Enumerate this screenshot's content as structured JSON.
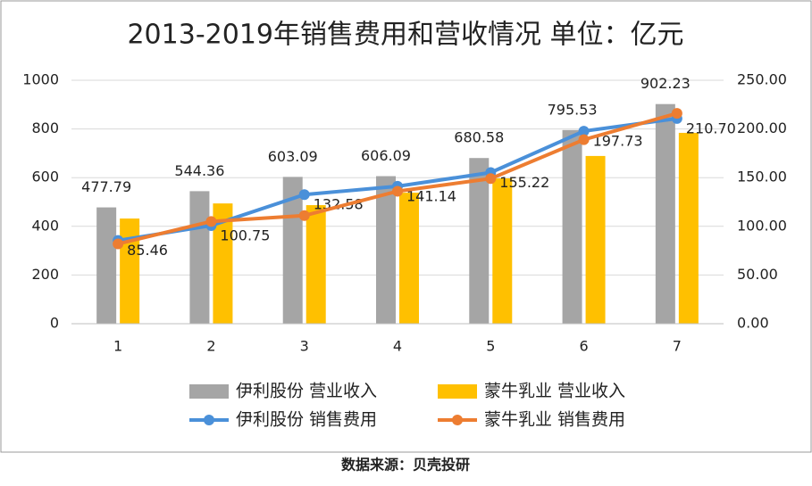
{
  "chart_data": {
    "type": "bar-line",
    "title": "2013-2019年销售费用和营收情况 单位：亿元",
    "source": "数据来源：贝壳投研",
    "categories": [
      "1",
      "2",
      "3",
      "4",
      "5",
      "6",
      "7"
    ],
    "series": [
      {
        "name": "伊利股份 营业收入",
        "kind": "bar",
        "color": "#a5a5a5",
        "values": [
          477.79,
          544.36,
          603.09,
          606.09,
          680.58,
          795.53,
          902.23
        ]
      },
      {
        "name": "蒙牛乳业 营业收入",
        "kind": "bar",
        "color": "#ffc000",
        "values": [
          432,
          494,
          487,
          538,
          597,
          689,
          784
        ]
      },
      {
        "name": "伊利股份 销售费用",
        "kind": "line",
        "axis": "y2",
        "color": "#4a90d9",
        "values": [
          85.46,
          100.75,
          132.58,
          141.14,
          155.22,
          197.73,
          210.7
        ],
        "value_labels": [
          "85.46",
          "100.75",
          "132.58",
          "141.14",
          "155.22",
          "197.73",
          "210.70"
        ]
      },
      {
        "name": "蒙牛乳业 销售费用",
        "kind": "line",
        "axis": "y2",
        "color": "#ed7d31",
        "values": [
          82,
          105,
          111,
          136,
          149,
          189,
          216
        ]
      }
    ],
    "ylim": [
      0,
      1000
    ],
    "yticks": [
      0,
      200,
      400,
      600,
      800,
      1000
    ],
    "y2lim": [
      0,
      250
    ],
    "y2ticks": [
      {
        "value": 0,
        "label": "0.00"
      },
      {
        "value": 50,
        "label": "50.00"
      },
      {
        "value": 100,
        "label": "100.00"
      },
      {
        "value": 150,
        "label": "150.00"
      },
      {
        "value": 200,
        "label": "200.00"
      },
      {
        "value": 250,
        "label": "250.00"
      }
    ],
    "grid": true
  }
}
